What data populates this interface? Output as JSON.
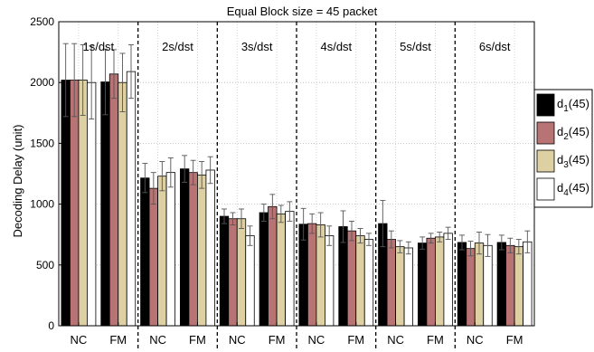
{
  "chart_data": {
    "type": "bar",
    "title": "Equal Block size = 45 packet",
    "ylabel": "Decoding Delay (unit)",
    "xlabel": "",
    "ylim": [
      0,
      2500
    ],
    "yticks": [
      0,
      500,
      1000,
      1500,
      2000,
      2500
    ],
    "grid": true,
    "legend_position": "right",
    "group_labels": [
      "1s/dst",
      "2s/dst",
      "3s/dst",
      "4s/dst",
      "5s/dst",
      "6s/dst"
    ],
    "categories": [
      "NC",
      "FM",
      "NC",
      "FM",
      "NC",
      "FM",
      "NC",
      "FM",
      "NC",
      "FM",
      "NC",
      "FM"
    ],
    "series": [
      {
        "legend_main": "d",
        "legend_sub": "1",
        "legend_suffix": "(45)",
        "color": "#000000",
        "values": [
          2020,
          2005,
          1215,
          1290,
          900,
          930,
          835,
          815,
          840,
          680,
          685,
          685
        ],
        "errors": [
          300,
          270,
          120,
          110,
          60,
          70,
          130,
          130,
          190,
          50,
          60,
          60
        ]
      },
      {
        "legend_main": "d",
        "legend_sub": "2",
        "legend_suffix": "(45)",
        "color": "#b87474",
        "values": [
          2020,
          2070,
          1130,
          1260,
          880,
          980,
          840,
          780,
          710,
          720,
          635,
          660
        ],
        "errors": [
          300,
          200,
          130,
          100,
          50,
          100,
          80,
          80,
          70,
          40,
          60,
          60
        ]
      },
      {
        "legend_main": "d",
        "legend_sub": "3",
        "legend_suffix": "(45)",
        "color": "#ddd0a2",
        "values": [
          2020,
          2000,
          1230,
          1240,
          880,
          920,
          830,
          740,
          650,
          730,
          680,
          650
        ],
        "errors": [
          290,
          240,
          120,
          110,
          80,
          70,
          100,
          60,
          50,
          40,
          90,
          60
        ]
      },
      {
        "legend_main": "d",
        "legend_sub": "4",
        "legend_suffix": "(45)",
        "color": "#ffffff",
        "values": [
          2000,
          2090,
          1260,
          1280,
          740,
          940,
          740,
          710,
          640,
          760,
          660,
          690
        ],
        "errors": [
          300,
          220,
          120,
          110,
          80,
          80,
          80,
          50,
          50,
          50,
          90,
          90
        ]
      }
    ]
  }
}
